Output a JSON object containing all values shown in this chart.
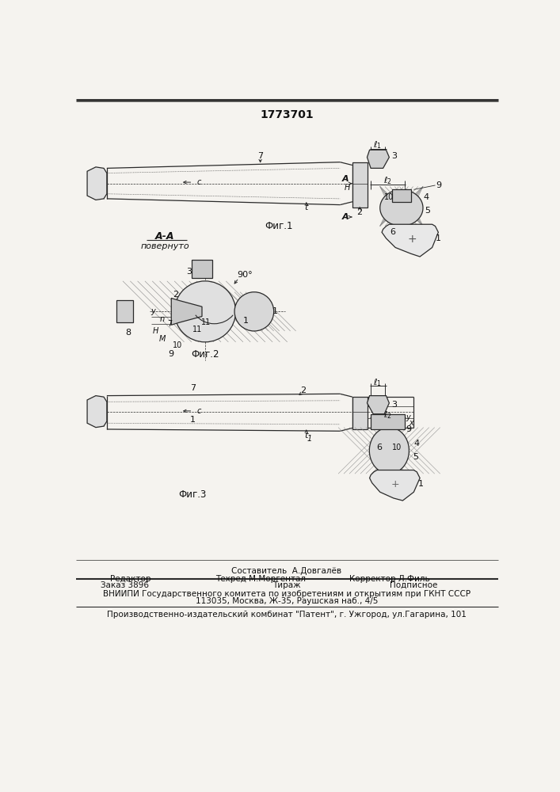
{
  "title": "1773701",
  "bg_color": "#f5f3ef",
  "fig_width": 7.07,
  "fig_height": 10.0,
  "footer_line1": "Составитель  А.Довгалёв",
  "footer_line2_left": "Редактор",
  "footer_line2_mid": "Техред М.Моргентал",
  "footer_line2_right": "Корректор Л.Филь",
  "footer_line3_left": "Заказ 3896",
  "footer_line3_mid": "Тираж",
  "footer_line3_right": "Подписное",
  "footer_line4": "ВНИИПИ Государственного комитета по изобретениям и открытиям при ГКНТ СССР",
  "footer_line5": "113035, Москва, Ж-35, Раушская наб., 4/5",
  "footer_line6": "Производственно-издательский комбинат \"Патент\", г. Ужгород, ул.Гагарина, 101",
  "fig1_label": "Фиг.1",
  "fig2_label": "Фиг.2",
  "fig3_label": "Фиг.3",
  "aa_label": "А-А",
  "povernuto_label": "повернуто"
}
